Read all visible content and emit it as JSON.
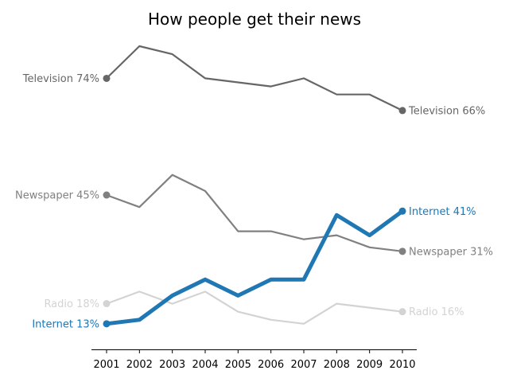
{
  "chart_data": {
    "type": "line",
    "title": "How people get their news",
    "xlabel": "",
    "ylabel": "",
    "x": [
      2001,
      2002,
      2003,
      2004,
      2005,
      2006,
      2007,
      2008,
      2009,
      2010
    ],
    "ylim": [
      10,
      82
    ],
    "grid": false,
    "legend": "none",
    "series": [
      {
        "name": "Television",
        "values": [
          74,
          82,
          80,
          74,
          73,
          72,
          74,
          70,
          70,
          66
        ],
        "color": "#666666",
        "start_label": "Television 74%",
        "end_label": "Television 66%"
      },
      {
        "name": "Newspaper",
        "values": [
          45,
          42,
          50,
          46,
          36,
          36,
          34,
          35,
          32,
          31
        ],
        "color": "#808080",
        "start_label": "Newspaper 45%",
        "end_label": "Newspaper 31%"
      },
      {
        "name": "Radio",
        "values": [
          18,
          21,
          18,
          21,
          16,
          14,
          13,
          18,
          17,
          16
        ],
        "color": "#d3d3d3",
        "start_label": "Radio 18%",
        "end_label": "Radio 16%"
      },
      {
        "name": "Internet",
        "values": [
          13,
          14,
          20,
          24,
          20,
          24,
          24,
          40,
          35,
          41
        ],
        "color": "#1f77b4",
        "highlight": true,
        "start_label": "Internet 13%",
        "end_label": "Internet 41%"
      }
    ]
  }
}
